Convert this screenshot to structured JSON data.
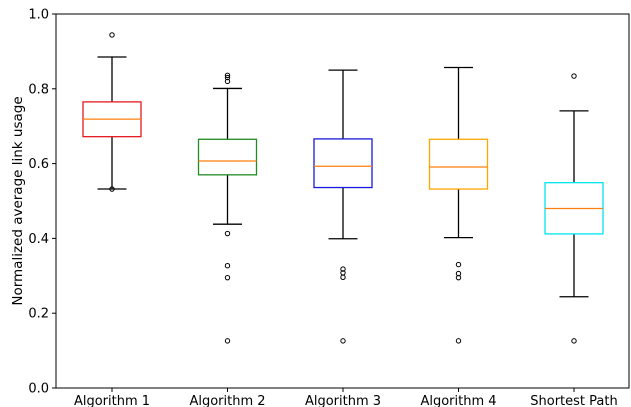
{
  "chart_data": {
    "type": "box",
    "title": "",
    "xlabel": "",
    "ylabel": "Normalized average link usage",
    "ylim": [
      0.0,
      1.0
    ],
    "yticks": [
      "0.0",
      "0.2",
      "0.4",
      "0.6",
      "0.8",
      "1.0"
    ],
    "grid": false,
    "categories": [
      "Algorithm 1",
      "Algorithm 2",
      "Algorithm 3",
      "Algorithm 4",
      "Shortest Path"
    ],
    "series": [
      {
        "whisker_low": 0.532,
        "q1": 0.672,
        "median": 0.719,
        "q3": 0.765,
        "whisker_high": 0.885,
        "outliers": [
          0.944,
          0.532
        ],
        "color": "#e31a1c"
      },
      {
        "whisker_low": 0.438,
        "q1": 0.57,
        "median": 0.607,
        "q3": 0.665,
        "whisker_high": 0.801,
        "outliers": [
          0.836,
          0.83,
          0.82,
          0.413,
          0.327,
          0.295,
          0.126
        ],
        "color": "#228b22"
      },
      {
        "whisker_low": 0.399,
        "q1": 0.536,
        "median": 0.593,
        "q3": 0.666,
        "whisker_high": 0.85,
        "outliers": [
          0.318,
          0.308,
          0.296,
          0.126
        ],
        "color": "#1a1adb"
      },
      {
        "whisker_low": 0.402,
        "q1": 0.532,
        "median": 0.591,
        "q3": 0.665,
        "whisker_high": 0.857,
        "outliers": [
          0.33,
          0.306,
          0.295,
          0.126
        ],
        "color": "#ffa500"
      },
      {
        "whisker_low": 0.244,
        "q1": 0.412,
        "median": 0.48,
        "q3": 0.549,
        "whisker_high": 0.741,
        "outliers": [
          0.834,
          0.126
        ],
        "color": "#00e5ee"
      }
    ],
    "median_color": "#ff7f0e",
    "whisker_color": "#000000"
  }
}
